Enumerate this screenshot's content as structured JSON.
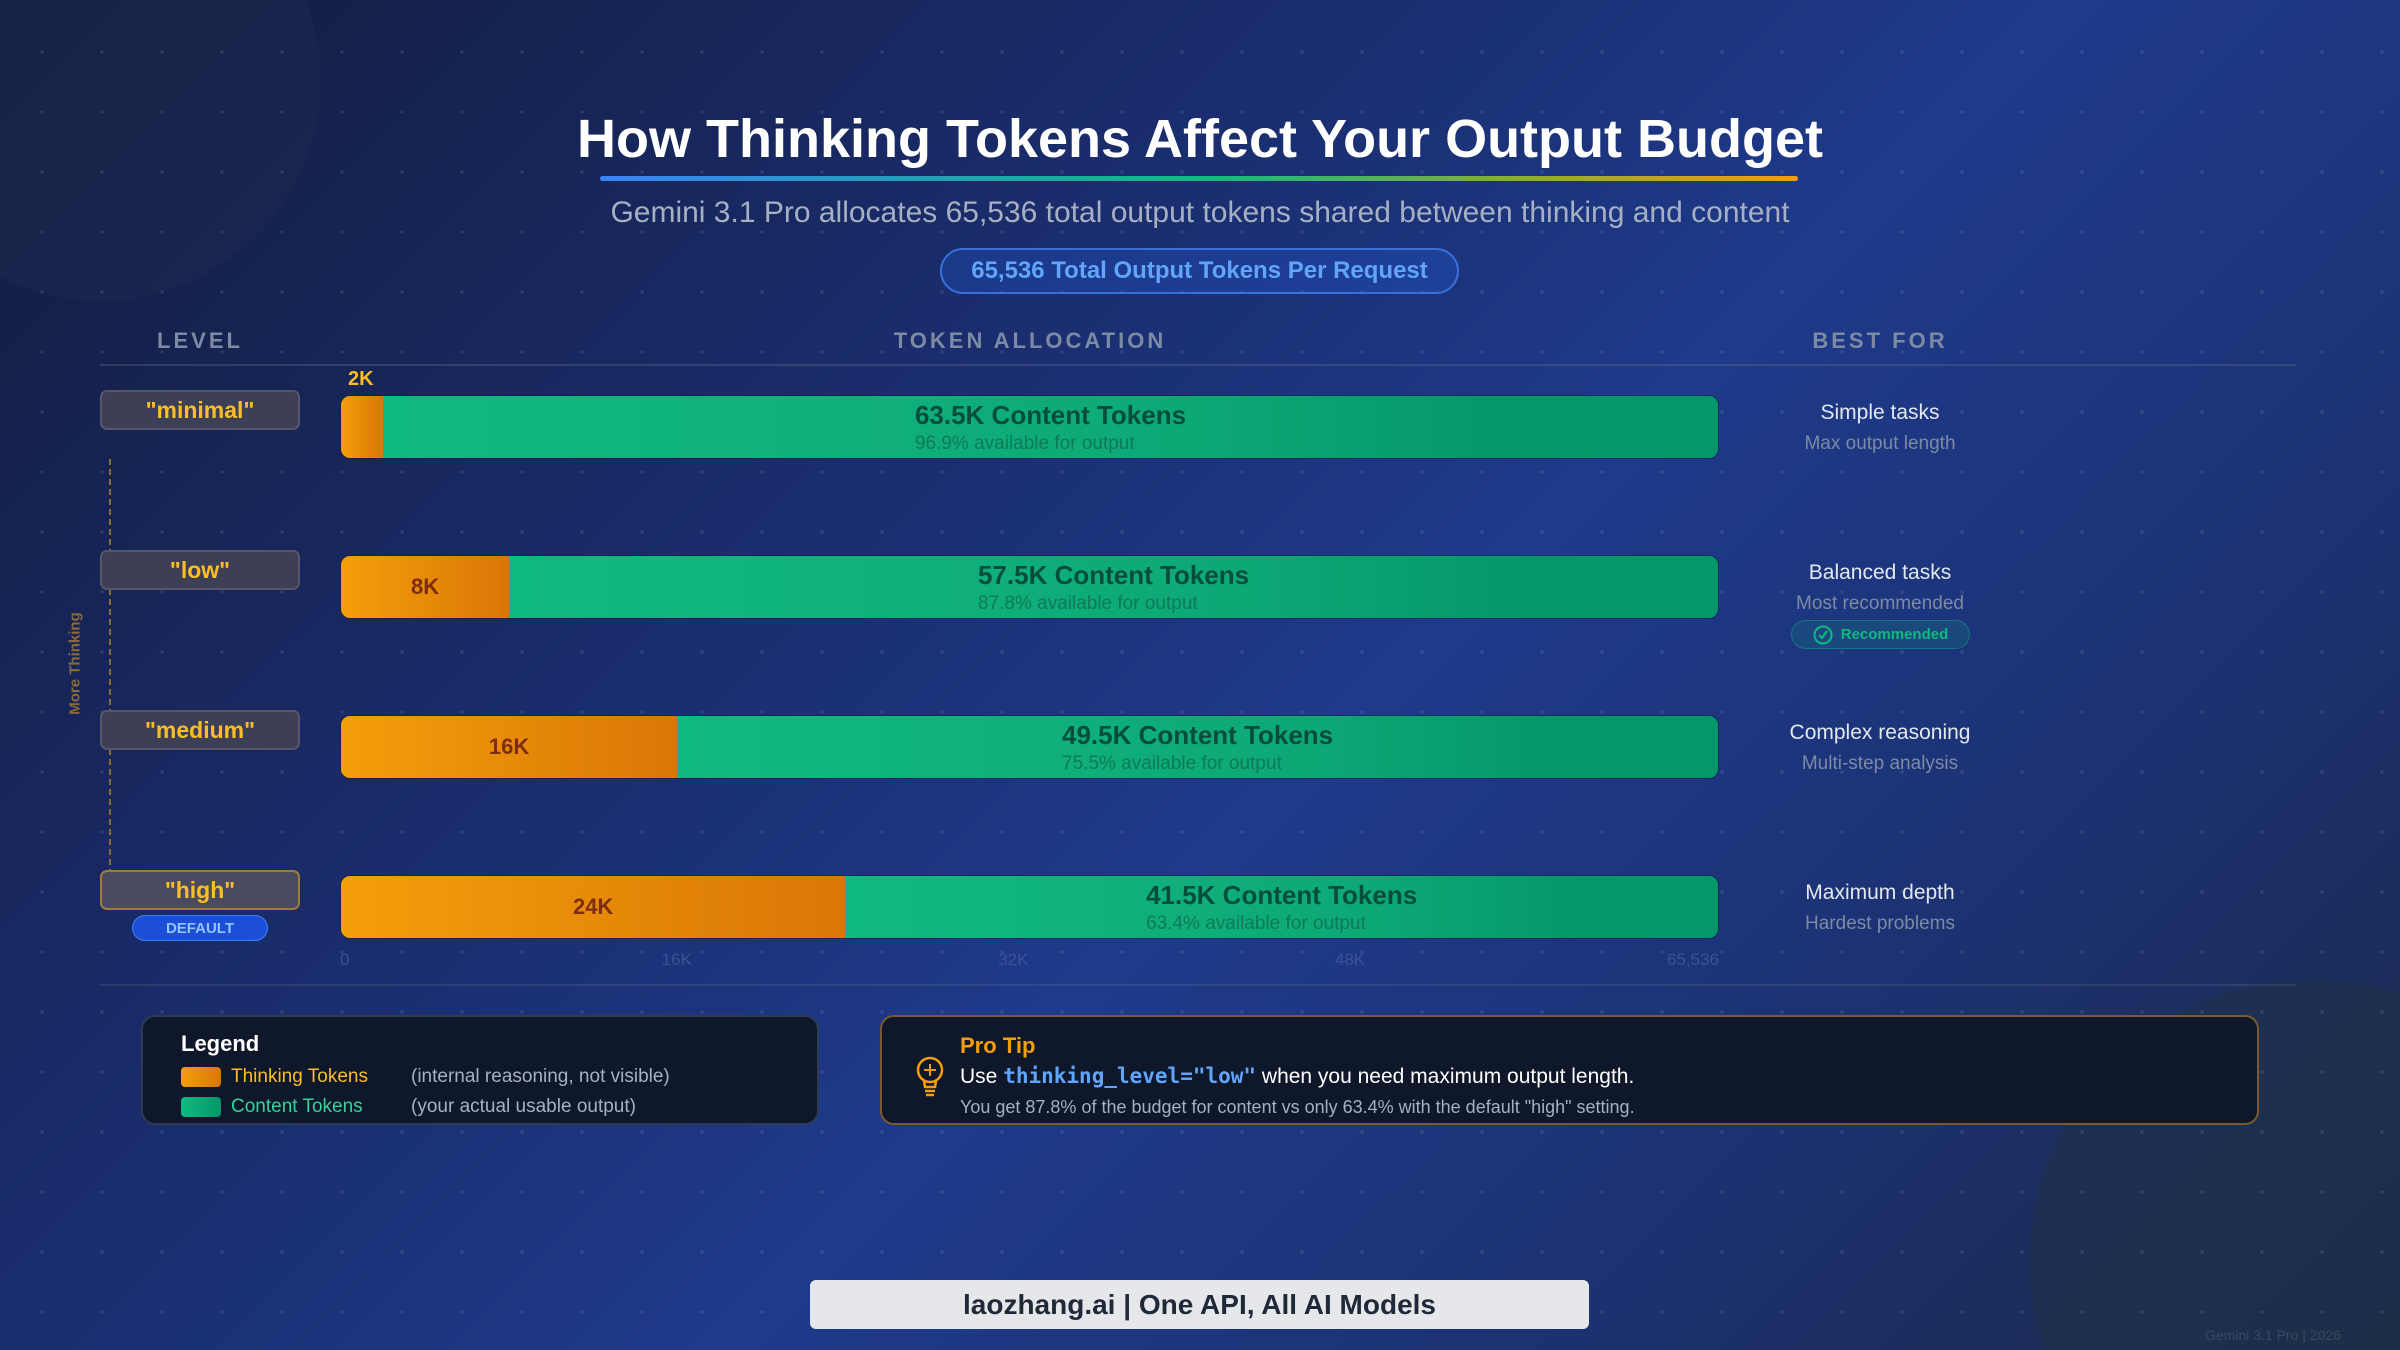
{
  "header": {
    "title": "How Thinking Tokens Affect Your Output Budget",
    "subtitle": "Gemini 3.1 Pro allocates 65,536 total output tokens shared between thinking and content",
    "badge": "65,536 Total Output Tokens Per Request"
  },
  "columns": {
    "level": "LEVEL",
    "allocation": "TOKEN ALLOCATION",
    "best_for": "BEST FOR"
  },
  "axis_side_label": "More Thinking",
  "chart_data": {
    "type": "bar",
    "stacked": true,
    "orientation": "horizontal",
    "xlim": [
      0,
      65536
    ],
    "x_ticks": [
      {
        "value": 0,
        "label": "0"
      },
      {
        "value": 16000,
        "label": "16K"
      },
      {
        "value": 32000,
        "label": "32K"
      },
      {
        "value": 48000,
        "label": "48K"
      },
      {
        "value": 65536,
        "label": "65,536"
      }
    ],
    "categories": [
      "\"minimal\"",
      "\"low\"",
      "\"medium\"",
      "\"high\""
    ],
    "series": [
      {
        "name": "Thinking Tokens",
        "color": "#f59e0b",
        "values": [
          2000,
          8000,
          16000,
          24000
        ]
      },
      {
        "name": "Content Tokens",
        "color": "#10b981",
        "values": [
          63500,
          57500,
          49500,
          41500
        ]
      }
    ]
  },
  "rows": [
    {
      "level": "\"minimal\"",
      "thinking_label": "2K",
      "content_label": "63.5K Content Tokens",
      "content_pct": "96.9% available for output",
      "best_title": "Simple tasks",
      "best_sub": "Max output length"
    },
    {
      "level": "\"low\"",
      "thinking_label": "8K",
      "content_label": "57.5K Content Tokens",
      "content_pct": "87.8% available for output",
      "best_title": "Balanced tasks",
      "best_sub": "Most recommended",
      "badge": "Recommended"
    },
    {
      "level": "\"medium\"",
      "thinking_label": "16K",
      "content_label": "49.5K Content Tokens",
      "content_pct": "75.5% available for output",
      "best_title": "Complex reasoning",
      "best_sub": "Multi-step analysis"
    },
    {
      "level": "\"high\"",
      "thinking_label": "24K",
      "content_label": "41.5K Content Tokens",
      "content_pct": "63.4% available for output",
      "best_title": "Maximum depth",
      "best_sub": "Hardest problems",
      "badge": "DEFAULT"
    }
  ],
  "legend": {
    "title": "Legend",
    "items": [
      {
        "label": "Thinking Tokens",
        "desc": "(internal reasoning, not visible)",
        "color": "#f59e0b"
      },
      {
        "label": "Content Tokens",
        "desc": "(your actual usable output)",
        "color": "#10b981"
      }
    ]
  },
  "tip": {
    "title": "Pro Tip",
    "pre": "Use ",
    "code": "thinking_level=\"low\"",
    "post": " when you need maximum output length.",
    "detail": "You get 87.8% of the budget for content vs only 63.4% with the default \"high\" setting.",
    "icon": "lightbulb-icon"
  },
  "footer": "laozhang.ai | One API, All AI Models",
  "watermark": "Gemini 3.1 Pro | 2026"
}
